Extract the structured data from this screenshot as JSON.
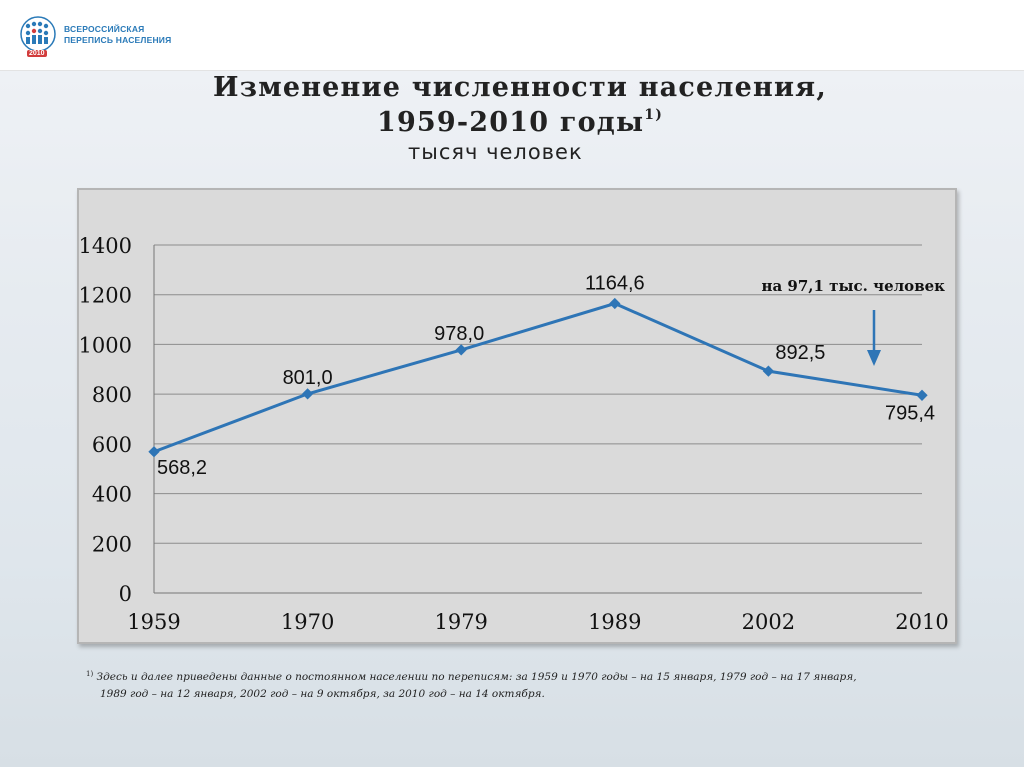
{
  "logo": {
    "line1": "ВСЕРОССИЙСКАЯ",
    "line2": "ПЕРЕПИСЬ НАСЕЛЕНИЯ",
    "year": "2010"
  },
  "title": {
    "line1": "Изменение численности населения,",
    "line2": "1959-2010 годы",
    "line2_sup": "1)",
    "subtitle": "тысяч человек"
  },
  "annotation": "на 97,1 тыс. человек",
  "footnote": {
    "mark": "1)",
    "line1": "Здесь и далее приведены данные о постоянном населении по переписям: за 1959 и 1970 годы – на 15 января, 1979 год – на 17 января,",
    "line2": "1989 год – на 12 января, 2002 год – на 9 октября, за 2010 год – на 14 октября."
  },
  "chart_data": {
    "type": "line",
    "categories": [
      "1959",
      "1970",
      "1979",
      "1989",
      "2002",
      "2010"
    ],
    "series": [
      {
        "values": [
          568.2,
          801.0,
          978.0,
          1164.6,
          892.5,
          795.4
        ],
        "data_labels": [
          "568,2",
          "801,0",
          "978,0",
          "1164,6",
          "892,5",
          "795,4"
        ]
      }
    ],
    "y_ticks": [
      "0",
      "200",
      "400",
      "600",
      "800",
      "1000",
      "1200",
      "1400"
    ],
    "ylim": [
      0,
      1400
    ],
    "grid": true,
    "colors": {
      "line": "#2e75b6",
      "grid": "#8c8c8c",
      "plot_bg": "#dadada",
      "arrow": "#2e75b6"
    }
  }
}
